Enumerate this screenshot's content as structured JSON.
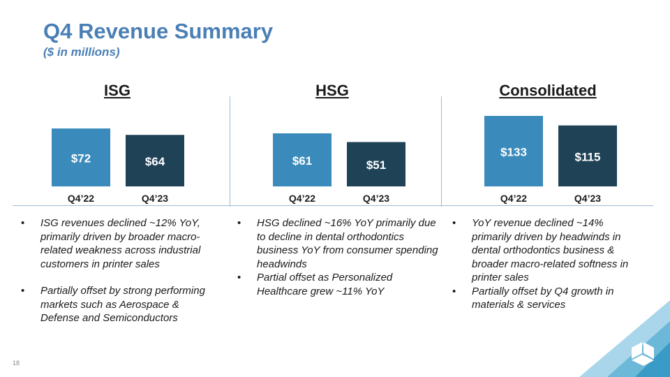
{
  "header": {
    "title": "Q4 Revenue Summary",
    "subtitle": "($ in millions)"
  },
  "panels": [
    {
      "title": "ISG",
      "bullets": [
        "ISG revenues declined ~12% YoY, primarily driven by broader macro-related weakness across industrial customers in printer sales",
        "Partially offset by strong performing markets such as Aerospace & Defense and Semiconductors"
      ]
    },
    {
      "title": "HSG",
      "bullets": [
        "HSG declined ~16% YoY primarily due to decline in dental orthodontics business YoY from consumer spending headwinds",
        "Partial offset as Personalized Healthcare grew ~11% YoY"
      ]
    },
    {
      "title": "Consolidated",
      "bullets": [
        "YoY revenue declined ~14% primarily driven by headwinds in dental orthodontics business & broader macro-related softness in printer sales",
        "Partially offset by Q4 growth in materials & services"
      ]
    }
  ],
  "chart_data": [
    {
      "type": "bar",
      "title": "ISG",
      "categories": [
        "Q4’22",
        "Q4’23"
      ],
      "values": [
        72,
        64
      ],
      "labels": [
        "$72",
        "$64"
      ],
      "colors": [
        "#3a8bbb",
        "#1f4257"
      ]
    },
    {
      "type": "bar",
      "title": "HSG",
      "categories": [
        "Q4’22",
        "Q4’23"
      ],
      "values": [
        61,
        51
      ],
      "labels": [
        "$61",
        "$51"
      ],
      "colors": [
        "#3a8bbb",
        "#1f4257"
      ]
    },
    {
      "type": "bar",
      "title": "Consolidated",
      "categories": [
        "Q4’22",
        "Q4’23"
      ],
      "values": [
        133,
        115
      ],
      "labels": [
        "$133",
        "$115"
      ],
      "colors": [
        "#3a8bbb",
        "#1f4257"
      ]
    }
  ],
  "footer": {
    "page_number": "18"
  },
  "colors": {
    "accent": "#4a7fb5",
    "bar_prior": "#3a8bbb",
    "bar_current": "#1f4257"
  }
}
